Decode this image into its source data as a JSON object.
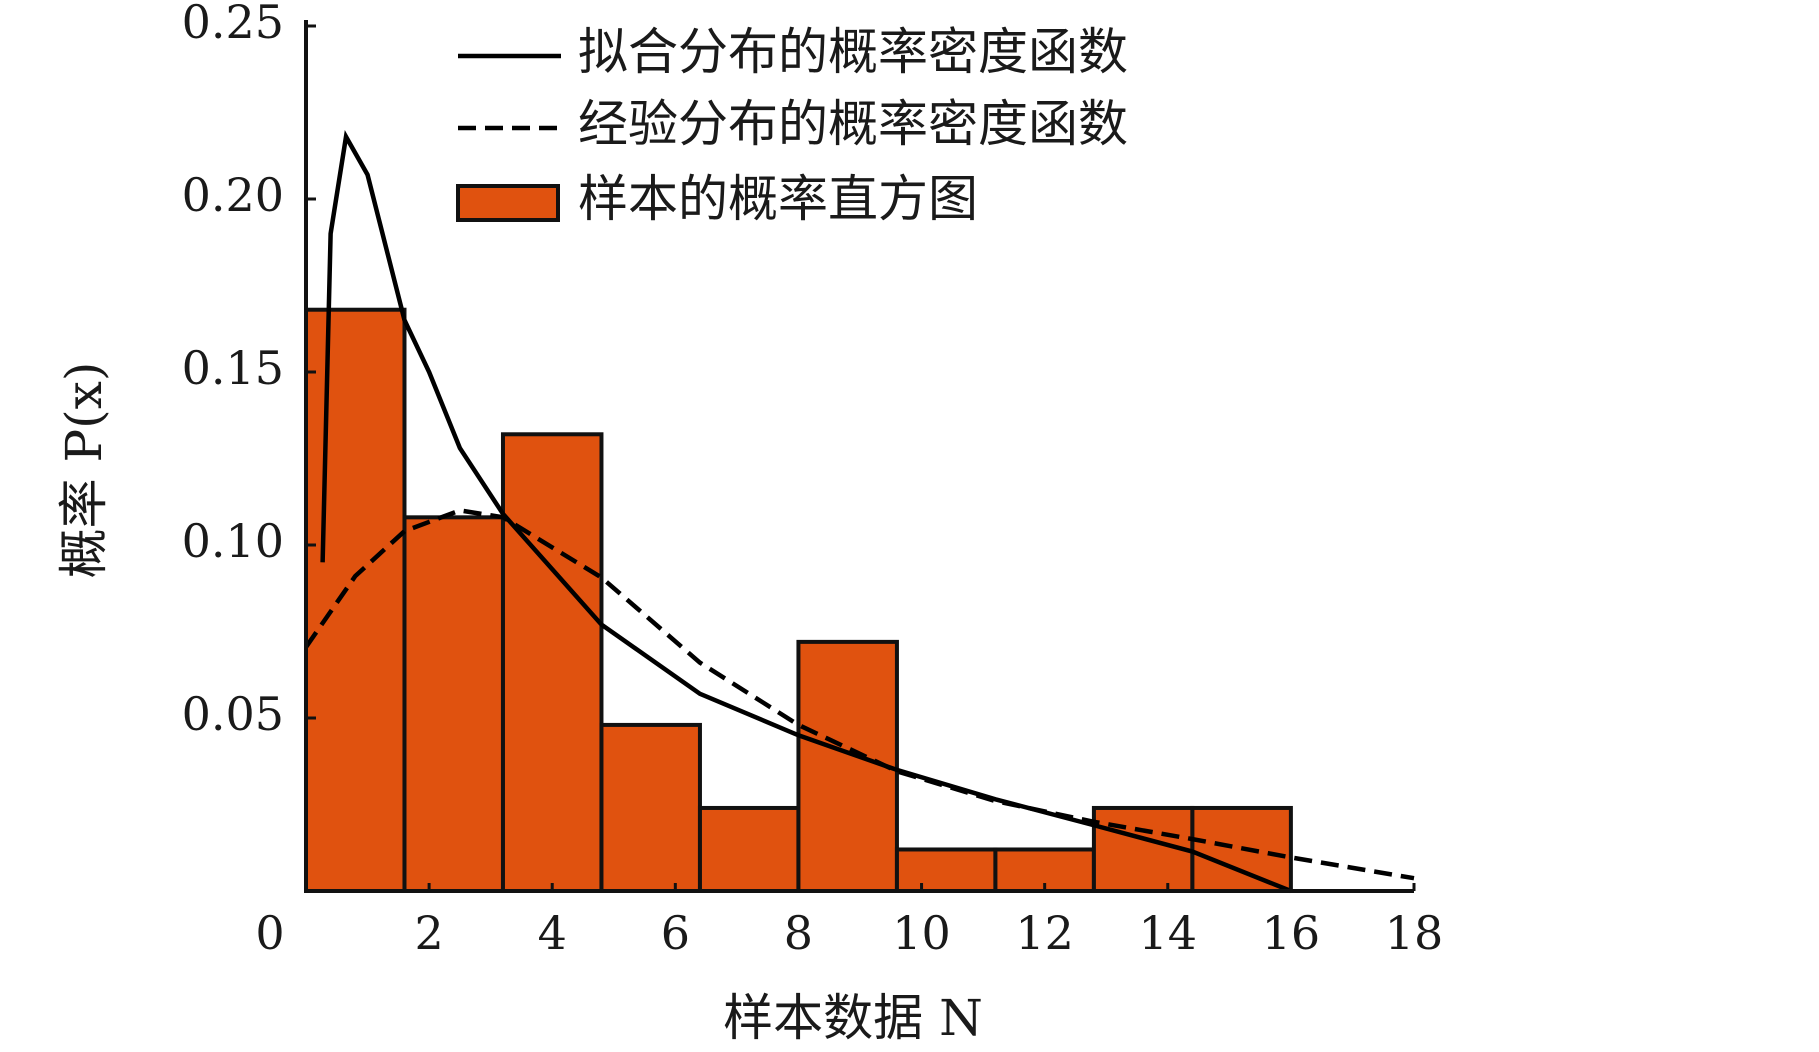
{
  "chart_data": {
    "type": "histogram",
    "x_label": "样本数据 N",
    "y_label": "概率 P(x)",
    "bins": [
      0,
      1.6,
      3.2,
      4.8,
      6.4,
      8.0,
      9.6,
      11.2,
      12.8,
      14.4,
      16.0
    ],
    "values": [
      0.168,
      0.108,
      0.132,
      0.048,
      0.024,
      0.072,
      0.012,
      0.012,
      0.024,
      0.024
    ],
    "name": "样本的概率直方图",
    "color": "#e0520f",
    "series": [
      {
        "name": "拟合分布的概率密度函数",
        "color": "#000000",
        "line_style": "solid",
        "x": [
          0.27,
          0.4,
          0.65,
          1.0,
          1.6,
          2.0,
          2.5,
          3.2,
          4.8,
          6.4,
          8.0,
          9.6,
          11.2,
          12.8,
          14.4,
          16.0
        ],
        "values": [
          0.095,
          0.19,
          0.218,
          0.207,
          0.165,
          0.15,
          0.128,
          0.109,
          0.077,
          0.057,
          0.045,
          0.035,
          0.0265,
          0.019,
          0.0114,
          0
        ]
      },
      {
        "name": "经验分布的概率密度函数",
        "color": "#000000",
        "line_style": "dashed",
        "x": [
          0,
          0.8,
          1.6,
          2.5,
          3.2,
          4.8,
          6.4,
          8.0,
          9.6,
          11.2,
          12.8,
          14.4,
          16.0,
          18.0
        ],
        "values": [
          0.0705,
          0.091,
          0.104,
          0.11,
          0.108,
          0.0906,
          0.066,
          0.048,
          0.0346,
          0.026,
          0.02,
          0.015,
          0.0097,
          0.0037
        ]
      }
    ],
    "xlim": [
      0,
      18
    ],
    "ylim": [
      0,
      0.25
    ],
    "xticks": [
      0,
      2,
      4,
      6,
      8,
      10,
      12,
      14,
      16,
      18
    ],
    "yticks": [
      0.05,
      {
        "value": 0.1,
        "label": "0.10"
      },
      0.15,
      {
        "value": 0.2,
        "label": "0.20"
      },
      0.25
    ],
    "legend": "upper right"
  }
}
